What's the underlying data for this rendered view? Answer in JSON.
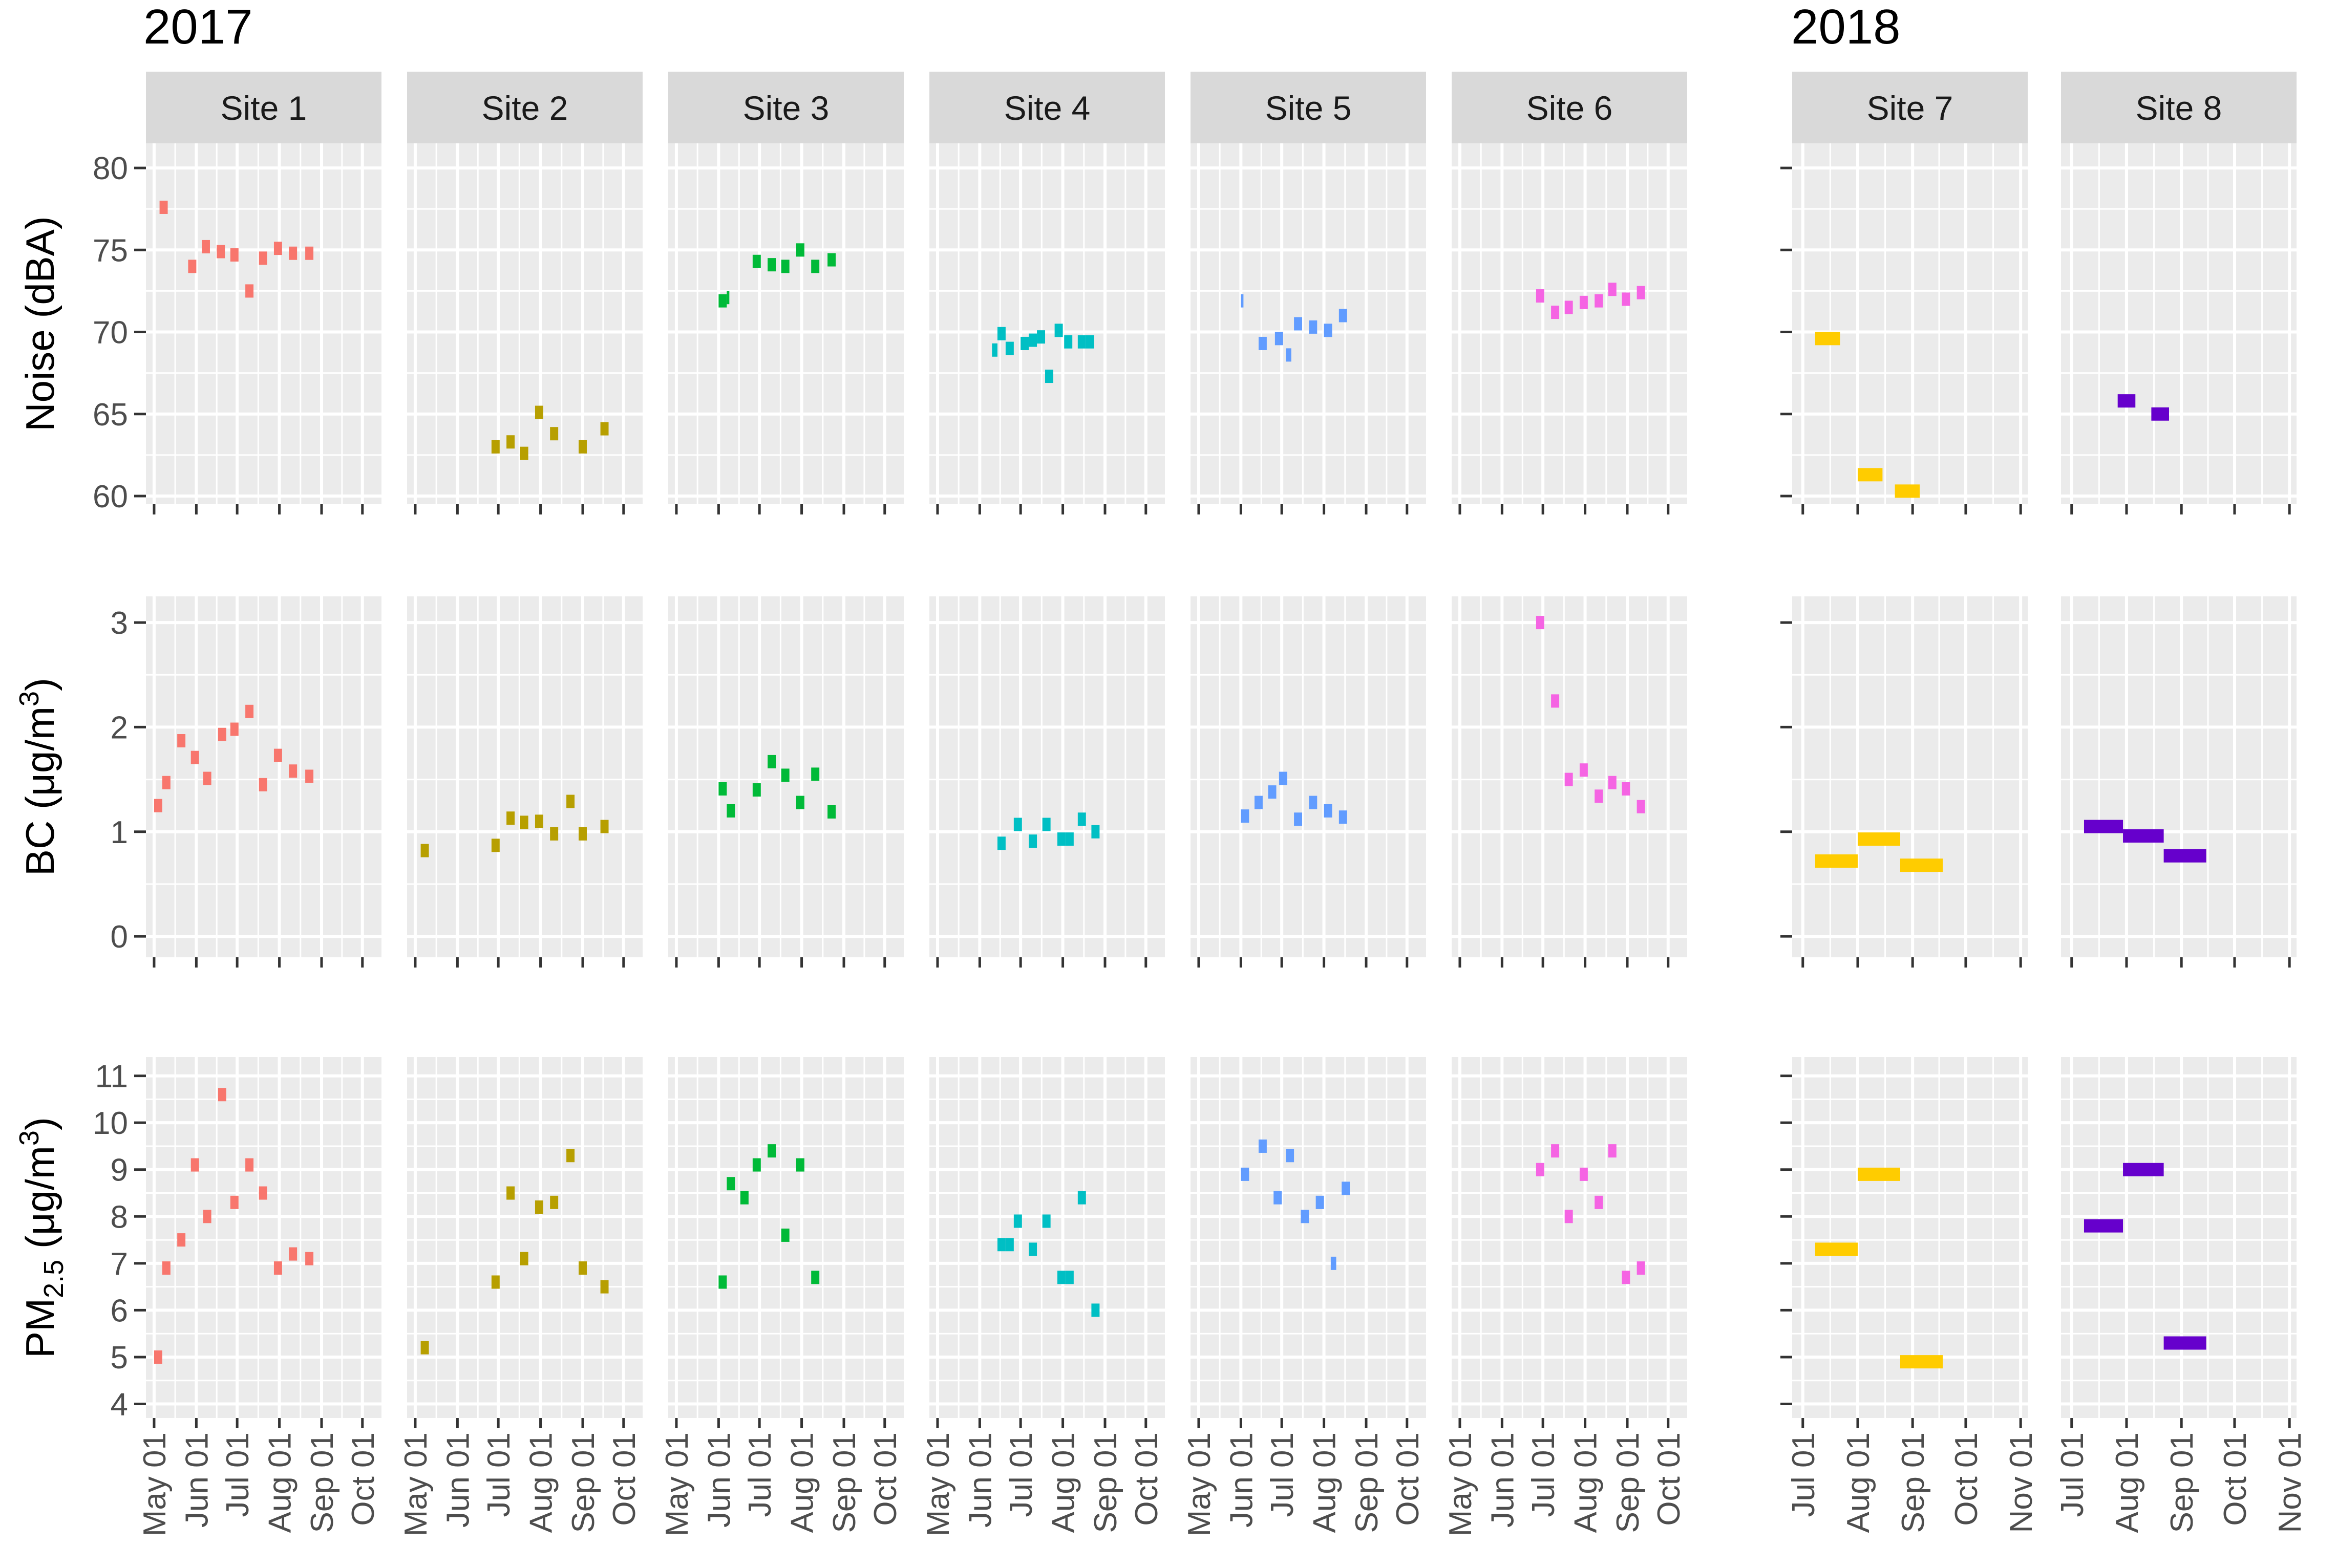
{
  "chart_data": {
    "type": "scatter",
    "mark": "horizontal-segment",
    "year_labels": [
      "2017",
      "2018"
    ],
    "rows": [
      {
        "key": "noise",
        "ylabel": "Noise (dBA)",
        "ylim": [
          59.5,
          81.5
        ],
        "yticks": [
          "60",
          "65",
          "70",
          "75",
          "80"
        ]
      },
      {
        "key": "bc",
        "ylabel": "BC (μg/m",
        "ylabel_sup": "3",
        "ylabel_end": ")",
        "ylim": [
          -0.2,
          3.25
        ],
        "yticks": [
          "0",
          "1",
          "2",
          "3"
        ]
      },
      {
        "key": "pm",
        "ylabel": "PM",
        "ylabel_sub": "2.5",
        "ylabel_mid": " (μg/m",
        "ylabel_sup": "3",
        "ylabel_end": ")",
        "ylim": [
          3.7,
          11.4
        ],
        "yticks": [
          "4",
          "5",
          "6",
          "7",
          "8",
          "9",
          "10",
          "11"
        ]
      }
    ],
    "x_2017": {
      "range": [
        "2017-04-25",
        "2017-10-15"
      ],
      "ticks": [
        "2017-05-01",
        "2017-06-01",
        "2017-07-01",
        "2017-08-01",
        "2017-09-01",
        "2017-10-01"
      ],
      "tick_labels": [
        "May 01",
        "Jun 01",
        "Jul 01",
        "Aug 01",
        "Sep 01",
        "Oct 01"
      ]
    },
    "x_2018": {
      "range": [
        "2018-06-25",
        "2018-11-05"
      ],
      "ticks": [
        "2018-07-01",
        "2018-08-01",
        "2018-09-01",
        "2018-10-01",
        "2018-11-01"
      ],
      "tick_labels": [
        "Jul 01",
        "Aug 01",
        "Sep 01",
        "Oct 01",
        "Nov 01"
      ]
    },
    "panels": [
      {
        "site": "Site 1",
        "year": "2017",
        "color": "#F8766D",
        "noise": [
          [
            "2017-05-05",
            "2017-05-11",
            77.6
          ],
          [
            "2017-05-26",
            "2017-06-01",
            74.0
          ],
          [
            "2017-06-05",
            "2017-06-11",
            75.2
          ],
          [
            "2017-06-16",
            "2017-06-22",
            74.9
          ],
          [
            "2017-06-26",
            "2017-07-02",
            74.7
          ],
          [
            "2017-07-07",
            "2017-07-13",
            72.5
          ],
          [
            "2017-07-17",
            "2017-07-23",
            74.5
          ],
          [
            "2017-07-28",
            "2017-08-03",
            75.1
          ],
          [
            "2017-08-08",
            "2017-08-14",
            74.8
          ],
          [
            "2017-08-20",
            "2017-08-26",
            74.8
          ]
        ],
        "bc": [
          [
            "2017-05-01",
            "2017-05-07",
            1.25
          ],
          [
            "2017-05-07",
            "2017-05-13",
            1.47
          ],
          [
            "2017-05-18",
            "2017-05-24",
            1.87
          ],
          [
            "2017-05-28",
            "2017-06-03",
            1.71
          ],
          [
            "2017-06-06",
            "2017-06-12",
            1.51
          ],
          [
            "2017-06-17",
            "2017-06-23",
            1.93
          ],
          [
            "2017-06-26",
            "2017-07-02",
            1.98
          ],
          [
            "2017-07-07",
            "2017-07-13",
            2.15
          ],
          [
            "2017-07-17",
            "2017-07-23",
            1.45
          ],
          [
            "2017-07-28",
            "2017-08-03",
            1.73
          ],
          [
            "2017-08-08",
            "2017-08-14",
            1.58
          ],
          [
            "2017-08-20",
            "2017-08-26",
            1.53
          ]
        ],
        "pm": [
          [
            "2017-05-01",
            "2017-05-07",
            5.0
          ],
          [
            "2017-05-07",
            "2017-05-13",
            6.9
          ],
          [
            "2017-05-18",
            "2017-05-24",
            7.5
          ],
          [
            "2017-05-28",
            "2017-06-03",
            9.1
          ],
          [
            "2017-06-06",
            "2017-06-12",
            8.0
          ],
          [
            "2017-06-17",
            "2017-06-23",
            10.6
          ],
          [
            "2017-06-26",
            "2017-07-02",
            8.3
          ],
          [
            "2017-07-07",
            "2017-07-13",
            9.1
          ],
          [
            "2017-07-17",
            "2017-07-23",
            8.5
          ],
          [
            "2017-07-28",
            "2017-08-03",
            6.9
          ],
          [
            "2017-08-08",
            "2017-08-14",
            7.2
          ],
          [
            "2017-08-20",
            "2017-08-26",
            7.1
          ]
        ]
      },
      {
        "site": "Site 2",
        "year": "2017",
        "color": "#B79F00",
        "noise": [
          [
            "2017-06-26",
            "2017-07-02",
            63.0
          ],
          [
            "2017-07-07",
            "2017-07-13",
            63.3
          ],
          [
            "2017-07-17",
            "2017-07-23",
            62.6
          ],
          [
            "2017-07-28",
            "2017-08-03",
            65.1
          ],
          [
            "2017-08-08",
            "2017-08-14",
            63.8
          ],
          [
            "2017-08-29",
            "2017-09-04",
            63.0
          ],
          [
            "2017-09-14",
            "2017-09-20",
            64.1
          ]
        ],
        "bc": [
          [
            "2017-05-05",
            "2017-05-11",
            0.82
          ],
          [
            "2017-06-26",
            "2017-07-02",
            0.87
          ],
          [
            "2017-07-07",
            "2017-07-13",
            1.13
          ],
          [
            "2017-07-17",
            "2017-07-23",
            1.09
          ],
          [
            "2017-07-28",
            "2017-08-03",
            1.1
          ],
          [
            "2017-08-08",
            "2017-08-14",
            0.98
          ],
          [
            "2017-08-20",
            "2017-08-26",
            1.29
          ],
          [
            "2017-08-29",
            "2017-09-04",
            0.98
          ],
          [
            "2017-09-14",
            "2017-09-20",
            1.05
          ]
        ],
        "pm": [
          [
            "2017-05-05",
            "2017-05-11",
            5.2
          ],
          [
            "2017-06-26",
            "2017-07-02",
            6.6
          ],
          [
            "2017-07-07",
            "2017-07-13",
            8.5
          ],
          [
            "2017-07-17",
            "2017-07-23",
            7.1
          ],
          [
            "2017-07-28",
            "2017-08-03",
            8.2
          ],
          [
            "2017-08-08",
            "2017-08-14",
            8.3
          ],
          [
            "2017-08-20",
            "2017-08-26",
            9.3
          ],
          [
            "2017-08-29",
            "2017-09-04",
            6.9
          ],
          [
            "2017-09-14",
            "2017-09-20",
            6.5
          ]
        ]
      },
      {
        "site": "Site 3",
        "year": "2017",
        "color": "#00BA38",
        "noise": [
          [
            "2017-06-01",
            "2017-06-07",
            71.9
          ],
          [
            "2017-06-07",
            "2017-06-08",
            72.1
          ],
          [
            "2017-06-26",
            "2017-07-02",
            74.3
          ],
          [
            "2017-07-07",
            "2017-07-13",
            74.1
          ],
          [
            "2017-07-17",
            "2017-07-23",
            74.0
          ],
          [
            "2017-07-28",
            "2017-08-03",
            75.0
          ],
          [
            "2017-08-08",
            "2017-08-14",
            74.0
          ],
          [
            "2017-08-20",
            "2017-08-26",
            74.4
          ]
        ],
        "bc": [
          [
            "2017-06-01",
            "2017-06-07",
            1.41
          ],
          [
            "2017-06-07",
            "2017-06-13",
            1.2
          ],
          [
            "2017-06-26",
            "2017-07-02",
            1.4
          ],
          [
            "2017-07-07",
            "2017-07-13",
            1.67
          ],
          [
            "2017-07-17",
            "2017-07-23",
            1.54
          ],
          [
            "2017-07-28",
            "2017-08-03",
            1.28
          ],
          [
            "2017-08-08",
            "2017-08-14",
            1.55
          ],
          [
            "2017-08-20",
            "2017-08-26",
            1.19
          ]
        ],
        "pm": [
          [
            "2017-06-01",
            "2017-06-07",
            6.6
          ],
          [
            "2017-06-07",
            "2017-06-13",
            8.7
          ],
          [
            "2017-06-17",
            "2017-06-23",
            8.4
          ],
          [
            "2017-06-26",
            "2017-07-02",
            9.1
          ],
          [
            "2017-07-07",
            "2017-07-13",
            9.4
          ],
          [
            "2017-07-17",
            "2017-07-23",
            7.6
          ],
          [
            "2017-07-28",
            "2017-08-03",
            9.1
          ],
          [
            "2017-08-08",
            "2017-08-14",
            6.7
          ]
        ]
      },
      {
        "site": "Site 4",
        "year": "2017",
        "color": "#00BFC4",
        "noise": [
          [
            "2017-06-10",
            "2017-06-14",
            68.9
          ],
          [
            "2017-06-14",
            "2017-06-20",
            69.9
          ],
          [
            "2017-06-20",
            "2017-06-26",
            69.0
          ],
          [
            "2017-07-01",
            "2017-07-07",
            69.3
          ],
          [
            "2017-07-07",
            "2017-07-13",
            69.5
          ],
          [
            "2017-07-13",
            "2017-07-19",
            69.7
          ],
          [
            "2017-07-19",
            "2017-07-25",
            67.3
          ],
          [
            "2017-07-26",
            "2017-08-01",
            70.1
          ],
          [
            "2017-08-02",
            "2017-08-08",
            69.4
          ],
          [
            "2017-08-12",
            "2017-08-18",
            69.4
          ],
          [
            "2017-08-18",
            "2017-08-24",
            69.4
          ]
        ],
        "bc": [
          [
            "2017-06-14",
            "2017-06-20",
            0.89
          ],
          [
            "2017-06-26",
            "2017-07-02",
            1.07
          ],
          [
            "2017-07-07",
            "2017-07-13",
            0.91
          ],
          [
            "2017-07-17",
            "2017-07-23",
            1.07
          ],
          [
            "2017-07-28",
            "2017-08-03",
            0.93
          ],
          [
            "2017-08-03",
            "2017-08-09",
            0.93
          ],
          [
            "2017-08-12",
            "2017-08-18",
            1.12
          ],
          [
            "2017-08-22",
            "2017-08-28",
            1.0
          ]
        ],
        "pm": [
          [
            "2017-06-14",
            "2017-06-20",
            7.4
          ],
          [
            "2017-06-20",
            "2017-06-26",
            7.4
          ],
          [
            "2017-06-26",
            "2017-07-02",
            7.9
          ],
          [
            "2017-07-07",
            "2017-07-13",
            7.3
          ],
          [
            "2017-07-17",
            "2017-07-23",
            7.9
          ],
          [
            "2017-07-28",
            "2017-08-03",
            6.7
          ],
          [
            "2017-08-03",
            "2017-08-09",
            6.7
          ],
          [
            "2017-08-12",
            "2017-08-18",
            8.4
          ],
          [
            "2017-08-22",
            "2017-08-28",
            6.0
          ]
        ]
      },
      {
        "site": "Site 5",
        "year": "2017",
        "color": "#619CFF",
        "noise": [
          [
            "2017-06-01",
            "2017-06-02",
            71.9
          ],
          [
            "2017-06-14",
            "2017-06-20",
            69.3
          ],
          [
            "2017-06-26",
            "2017-07-02",
            69.6
          ],
          [
            "2017-07-04",
            "2017-07-08",
            68.6
          ],
          [
            "2017-07-10",
            "2017-07-16",
            70.5
          ],
          [
            "2017-07-21",
            "2017-07-27",
            70.3
          ],
          [
            "2017-08-01",
            "2017-08-07",
            70.1
          ],
          [
            "2017-08-12",
            "2017-08-18",
            71.0
          ]
        ],
        "bc": [
          [
            "2017-06-01",
            "2017-06-07",
            1.15
          ],
          [
            "2017-06-11",
            "2017-06-17",
            1.28
          ],
          [
            "2017-06-21",
            "2017-06-27",
            1.38
          ],
          [
            "2017-06-29",
            "2017-07-05",
            1.51
          ],
          [
            "2017-07-10",
            "2017-07-16",
            1.12
          ],
          [
            "2017-07-21",
            "2017-07-27",
            1.28
          ],
          [
            "2017-08-01",
            "2017-08-07",
            1.2
          ],
          [
            "2017-08-12",
            "2017-08-18",
            1.14
          ]
        ],
        "pm": [
          [
            "2017-06-01",
            "2017-06-07",
            8.9
          ],
          [
            "2017-06-14",
            "2017-06-20",
            9.5
          ],
          [
            "2017-06-25",
            "2017-07-01",
            8.4
          ],
          [
            "2017-07-04",
            "2017-07-10",
            9.3
          ],
          [
            "2017-07-15",
            "2017-07-21",
            8.0
          ],
          [
            "2017-07-26",
            "2017-08-01",
            8.3
          ],
          [
            "2017-08-06",
            "2017-08-10",
            7.0
          ],
          [
            "2017-08-14",
            "2017-08-20",
            8.6
          ]
        ]
      },
      {
        "site": "Site 6",
        "year": "2017",
        "color": "#F564E3",
        "noise": [
          [
            "2017-06-26",
            "2017-07-02",
            72.2
          ],
          [
            "2017-07-07",
            "2017-07-13",
            71.2
          ],
          [
            "2017-07-17",
            "2017-07-23",
            71.5
          ],
          [
            "2017-07-28",
            "2017-08-03",
            71.8
          ],
          [
            "2017-08-08",
            "2017-08-14",
            71.9
          ],
          [
            "2017-08-18",
            "2017-08-24",
            72.6
          ],
          [
            "2017-08-28",
            "2017-09-03",
            72.0
          ],
          [
            "2017-09-08",
            "2017-09-14",
            72.4
          ]
        ],
        "bc": [
          [
            "2017-06-26",
            "2017-07-02",
            3.0
          ],
          [
            "2017-07-07",
            "2017-07-13",
            2.25
          ],
          [
            "2017-07-17",
            "2017-07-23",
            1.5
          ],
          [
            "2017-07-28",
            "2017-08-03",
            1.59
          ],
          [
            "2017-08-08",
            "2017-08-14",
            1.34
          ],
          [
            "2017-08-18",
            "2017-08-24",
            1.47
          ],
          [
            "2017-08-28",
            "2017-09-03",
            1.41
          ],
          [
            "2017-09-08",
            "2017-09-14",
            1.24
          ]
        ],
        "pm": [
          [
            "2017-06-26",
            "2017-07-02",
            9.0
          ],
          [
            "2017-07-07",
            "2017-07-13",
            9.4
          ],
          [
            "2017-07-17",
            "2017-07-23",
            8.0
          ],
          [
            "2017-07-28",
            "2017-08-03",
            8.9
          ],
          [
            "2017-08-08",
            "2017-08-14",
            8.3
          ],
          [
            "2017-08-18",
            "2017-08-24",
            9.4
          ],
          [
            "2017-08-28",
            "2017-09-03",
            6.7
          ],
          [
            "2017-09-08",
            "2017-09-14",
            6.9
          ]
        ]
      },
      {
        "site": "Site 7",
        "year": "2018",
        "color": "#FFCC00",
        "noise": [
          [
            "2018-07-08",
            "2018-07-22",
            69.6
          ],
          [
            "2018-08-01",
            "2018-08-15",
            61.3
          ],
          [
            "2018-08-22",
            "2018-09-05",
            60.3
          ]
        ],
        "bc": [
          [
            "2018-07-08",
            "2018-08-01",
            0.72
          ],
          [
            "2018-08-01",
            "2018-08-25",
            0.93
          ],
          [
            "2018-08-25",
            "2018-09-18",
            0.68
          ]
        ],
        "pm": [
          [
            "2018-07-08",
            "2018-08-01",
            7.3
          ],
          [
            "2018-08-01",
            "2018-08-25",
            8.9
          ],
          [
            "2018-08-25",
            "2018-09-18",
            4.9
          ]
        ]
      },
      {
        "site": "Site 8",
        "year": "2018",
        "color": "#6600CC",
        "noise": [
          [
            "2018-07-27",
            "2018-08-06",
            65.8
          ],
          [
            "2018-08-15",
            "2018-08-25",
            65.0
          ]
        ],
        "bc": [
          [
            "2018-07-08",
            "2018-07-30",
            1.05
          ],
          [
            "2018-07-30",
            "2018-08-22",
            0.96
          ],
          [
            "2018-08-22",
            "2018-09-15",
            0.77
          ]
        ],
        "pm": [
          [
            "2018-07-08",
            "2018-07-30",
            7.8
          ],
          [
            "2018-07-30",
            "2018-08-22",
            9.0
          ],
          [
            "2018-08-22",
            "2018-09-15",
            5.3
          ]
        ]
      }
    ]
  }
}
